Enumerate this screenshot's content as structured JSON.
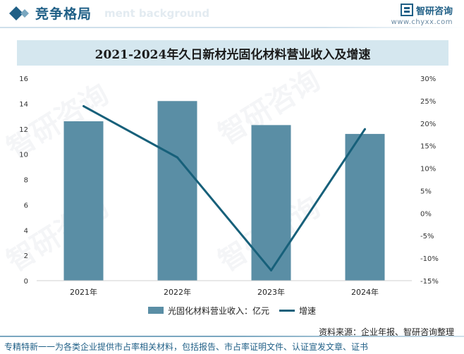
{
  "header": {
    "section_title": "竞争格局",
    "ghost_subtitle": "ment background",
    "brand_name": "智研咨询",
    "brand_url": "www.chyxx.com"
  },
  "chart_data": {
    "type": "bar",
    "title": "2021-2024年久日新材光固化材料营业收入及增速",
    "categories": [
      "2021年",
      "2022年",
      "2023年",
      "2024年"
    ],
    "series": [
      {
        "name": "光固化材料营业收入：亿元",
        "type": "bar",
        "axis": "left",
        "values": [
          12.6,
          14.2,
          12.3,
          11.6
        ]
      },
      {
        "name": "增速",
        "type": "line",
        "axis": "right",
        "values": [
          23.8,
          12.4,
          -12.7,
          18.7
        ]
      }
    ],
    "ylim_left": [
      0,
      16
    ],
    "ylim_right": [
      -15,
      30
    ],
    "yticks_left": [
      "0",
      "2",
      "4",
      "6",
      "8",
      "10",
      "12",
      "14",
      "16"
    ],
    "yticks_right": [
      "-15%",
      "-10%",
      "-5%",
      "0%",
      "5%",
      "10%",
      "15%",
      "20%",
      "25%",
      "30%"
    ],
    "grid": false,
    "legend": "bottom",
    "colors": {
      "bar": "#5a8ea5",
      "line": "#17607a"
    }
  },
  "source": "资料来源：企业年报、智研咨询整理",
  "footer": "专精特新一一为各类企业提供市占率相关材料，包括报告、市占率证明文件、认证宣发文章、证书",
  "watermark_text": "智研咨询"
}
